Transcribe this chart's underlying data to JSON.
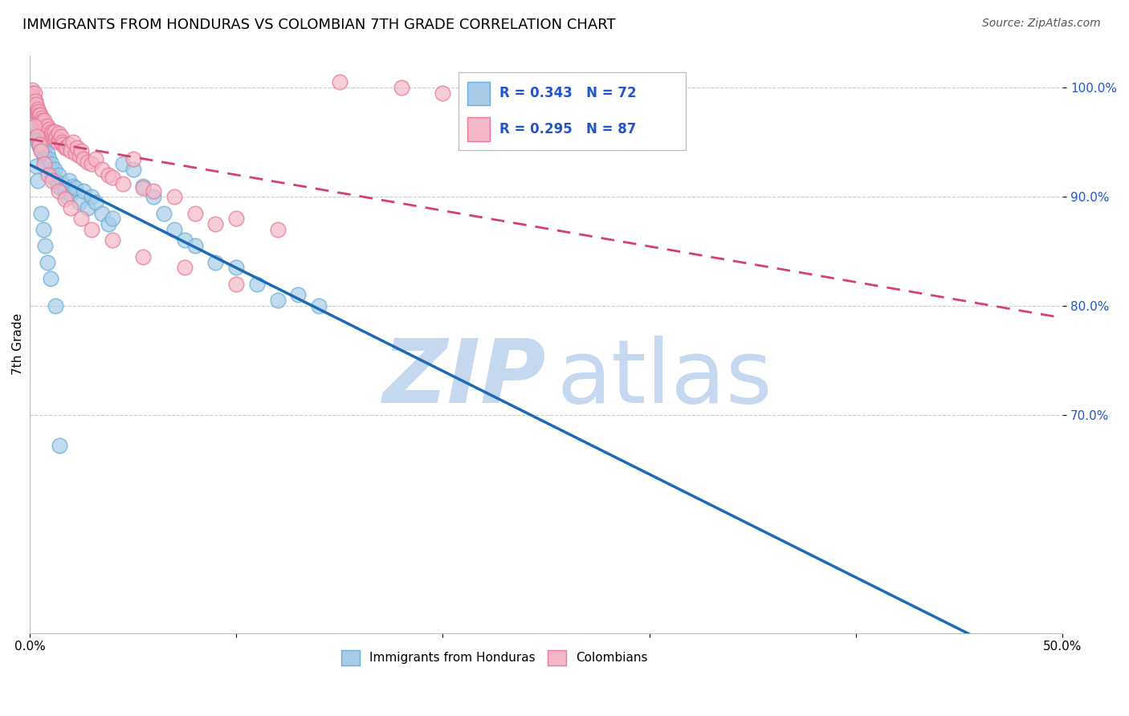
{
  "title": "IMMIGRANTS FROM HONDURAS VS COLOMBIAN 7TH GRADE CORRELATION CHART",
  "source": "Source: ZipAtlas.com",
  "ylabel": "7th Grade",
  "xlim": [
    0.0,
    50.0
  ],
  "ylim": [
    50.0,
    103.0
  ],
  "legend_r_blue": "R = 0.343",
  "legend_n_blue": "N = 72",
  "legend_r_pink": "R = 0.295",
  "legend_n_pink": "N = 87",
  "blue_fill": "#a8cce8",
  "blue_edge": "#6aaed6",
  "pink_fill": "#f4b8c8",
  "pink_edge": "#e87898",
  "blue_line_color": "#1a6ab5",
  "pink_line_color": "#d44070",
  "legend_text_color": "#2255cc",
  "axis_tick_color": "#2255cc",
  "background_color": "#ffffff",
  "grid_color": "#cccccc",
  "title_fontsize": 13,
  "source_fontsize": 10,
  "honduras_x": [
    0.15,
    0.18,
    0.2,
    0.22,
    0.25,
    0.28,
    0.3,
    0.35,
    0.38,
    0.4,
    0.42,
    0.45,
    0.5,
    0.52,
    0.55,
    0.58,
    0.6,
    0.65,
    0.7,
    0.72,
    0.75,
    0.8,
    0.85,
    0.9,
    0.95,
    1.0,
    1.05,
    1.1,
    1.15,
    1.2,
    1.3,
    1.35,
    1.4,
    1.5,
    1.6,
    1.7,
    1.8,
    1.9,
    2.0,
    2.1,
    2.2,
    2.4,
    2.6,
    2.8,
    3.0,
    3.2,
    3.5,
    3.8,
    4.0,
    4.5,
    5.0,
    5.5,
    6.0,
    6.5,
    7.0,
    7.5,
    8.0,
    9.0,
    10.0,
    11.0,
    12.0,
    13.0,
    14.0,
    0.3,
    0.4,
    0.55,
    0.65,
    0.75,
    0.85,
    1.0,
    1.25,
    1.45
  ],
  "honduras_y": [
    96.5,
    97.2,
    97.0,
    96.8,
    96.2,
    95.8,
    96.5,
    95.5,
    95.0,
    96.0,
    94.8,
    95.2,
    95.5,
    94.5,
    95.0,
    94.2,
    94.8,
    94.0,
    93.5,
    94.5,
    93.8,
    93.2,
    94.0,
    92.8,
    93.5,
    92.5,
    93.0,
    92.0,
    91.8,
    92.5,
    91.5,
    91.0,
    92.0,
    90.8,
    91.2,
    90.5,
    90.0,
    91.5,
    90.2,
    91.0,
    90.8,
    89.5,
    90.5,
    89.0,
    90.0,
    89.5,
    88.5,
    87.5,
    88.0,
    93.0,
    92.5,
    91.0,
    90.0,
    88.5,
    87.0,
    86.0,
    85.5,
    84.0,
    83.5,
    82.0,
    80.5,
    81.0,
    80.0,
    92.8,
    91.5,
    88.5,
    87.0,
    85.5,
    84.0,
    82.5,
    80.0,
    67.2
  ],
  "colombian_x": [
    0.1,
    0.12,
    0.15,
    0.18,
    0.2,
    0.22,
    0.25,
    0.28,
    0.3,
    0.32,
    0.35,
    0.38,
    0.4,
    0.42,
    0.45,
    0.48,
    0.5,
    0.52,
    0.55,
    0.58,
    0.6,
    0.62,
    0.65,
    0.7,
    0.72,
    0.75,
    0.8,
    0.85,
    0.9,
    0.95,
    1.0,
    1.05,
    1.1,
    1.15,
    1.2,
    1.25,
    1.3,
    1.35,
    1.4,
    1.45,
    1.5,
    1.55,
    1.6,
    1.7,
    1.8,
    1.9,
    2.0,
    2.1,
    2.2,
    2.3,
    2.4,
    2.5,
    2.6,
    2.8,
    3.0,
    3.2,
    3.5,
    3.8,
    4.0,
    4.5,
    5.0,
    5.5,
    6.0,
    7.0,
    8.0,
    9.0,
    10.0,
    12.0,
    15.0,
    18.0,
    20.0,
    0.25,
    0.35,
    0.45,
    0.55,
    0.7,
    0.9,
    1.1,
    1.4,
    1.7,
    2.0,
    2.5,
    3.0,
    4.0,
    5.5,
    7.5,
    10.0
  ],
  "colombian_y": [
    99.8,
    99.5,
    99.2,
    99.0,
    98.8,
    99.5,
    98.5,
    98.8,
    98.2,
    98.5,
    97.8,
    98.0,
    97.5,
    97.8,
    97.2,
    97.5,
    97.0,
    97.5,
    96.8,
    97.2,
    96.5,
    97.0,
    96.8,
    96.5,
    97.0,
    96.2,
    96.0,
    96.5,
    95.8,
    96.2,
    95.5,
    96.0,
    95.8,
    95.5,
    96.0,
    95.2,
    95.5,
    95.0,
    95.8,
    95.2,
    95.5,
    95.0,
    94.8,
    94.5,
    94.5,
    94.8,
    94.2,
    95.0,
    94.0,
    94.5,
    93.8,
    94.2,
    93.5,
    93.2,
    93.0,
    93.5,
    92.5,
    92.0,
    91.8,
    91.2,
    93.5,
    90.8,
    90.5,
    90.0,
    88.5,
    87.5,
    88.0,
    87.0,
    100.5,
    100.0,
    99.5,
    96.5,
    95.5,
    94.8,
    94.2,
    93.0,
    92.0,
    91.5,
    90.5,
    89.8,
    89.0,
    88.0,
    87.0,
    86.0,
    84.5,
    83.5,
    82.0
  ]
}
